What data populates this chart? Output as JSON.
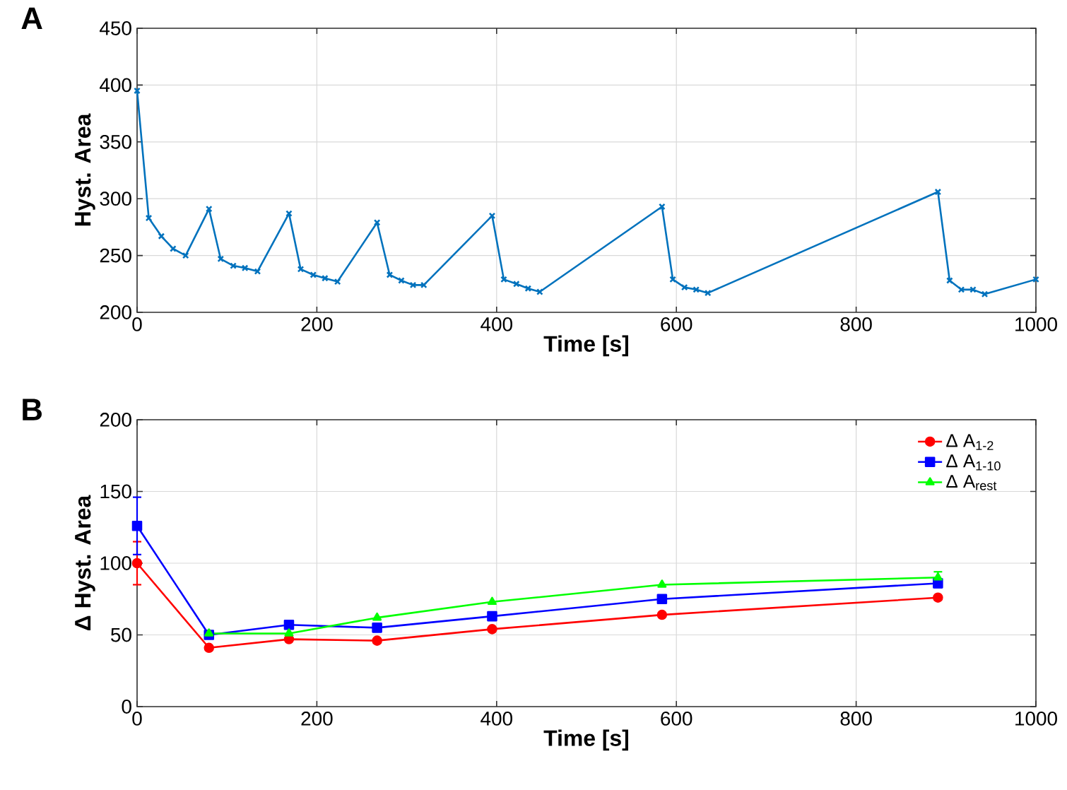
{
  "chart_data": [
    {
      "type": "line",
      "xlabel": "Time [s]",
      "ylabel": "Hyst. Area",
      "annotations": [
        "A"
      ],
      "marker": "cross",
      "grid": true,
      "xlim": [
        0,
        1000
      ],
      "ylim": [
        200,
        450
      ],
      "xticks": [
        0,
        200,
        400,
        600,
        800,
        1000
      ],
      "yticks": [
        200,
        250,
        300,
        350,
        400,
        450
      ],
      "series": [
        {
          "color": "#0072bd",
          "x": [
            0,
            13,
            27,
            40,
            54,
            80,
            93,
            107,
            120,
            134,
            169,
            182,
            196,
            209,
            223,
            267,
            281,
            294,
            307,
            319,
            395,
            408,
            422,
            435,
            448,
            584,
            596,
            609,
            622,
            635,
            891,
            904,
            917,
            930,
            943,
            1000
          ],
          "values": [
            395,
            283,
            267,
            256,
            250,
            291,
            247,
            241,
            239,
            236,
            287,
            238,
            233,
            230,
            227,
            279,
            233,
            228,
            224,
            224,
            285,
            229,
            225,
            221,
            218,
            293,
            229,
            222,
            220,
            217,
            306,
            228,
            220,
            220,
            216,
            229
          ]
        }
      ]
    },
    {
      "type": "line",
      "xlabel": "Time [s]",
      "ylabel": "Δ Hyst. Area",
      "annotations": [
        "B"
      ],
      "grid": true,
      "legend": "top right",
      "xlim": [
        0,
        1000
      ],
      "ylim": [
        0,
        200
      ],
      "xticks": [
        0,
        200,
        400,
        600,
        800,
        1000
      ],
      "yticks": [
        0,
        50,
        100,
        150,
        200
      ],
      "series": [
        {
          "name": "Δ A$_{1-2}$",
          "color": "#ff0000",
          "marker": "circle",
          "x": [
            0,
            80,
            169,
            267,
            395,
            584,
            891
          ],
          "values": [
            100,
            41,
            47,
            46,
            54,
            64,
            76
          ],
          "errors": [
            15,
            null,
            null,
            null,
            null,
            null,
            null
          ]
        },
        {
          "name": "Δ A$_{1-10}$",
          "color": "#0000ff",
          "marker": "square",
          "x": [
            0,
            80,
            169,
            267,
            395,
            584,
            891
          ],
          "values": [
            126,
            50,
            57,
            55,
            63,
            75,
            86
          ],
          "errors": [
            20,
            null,
            null,
            null,
            null,
            null,
            3
          ]
        },
        {
          "name": "Δ A$_{rest}$",
          "color": "#00ff00",
          "marker": "triangle",
          "x": [
            80,
            169,
            267,
            395,
            584,
            891
          ],
          "values": [
            51,
            51,
            62,
            73,
            85,
            90
          ],
          "errors": [
            null,
            null,
            null,
            null,
            null,
            4
          ]
        }
      ]
    }
  ]
}
